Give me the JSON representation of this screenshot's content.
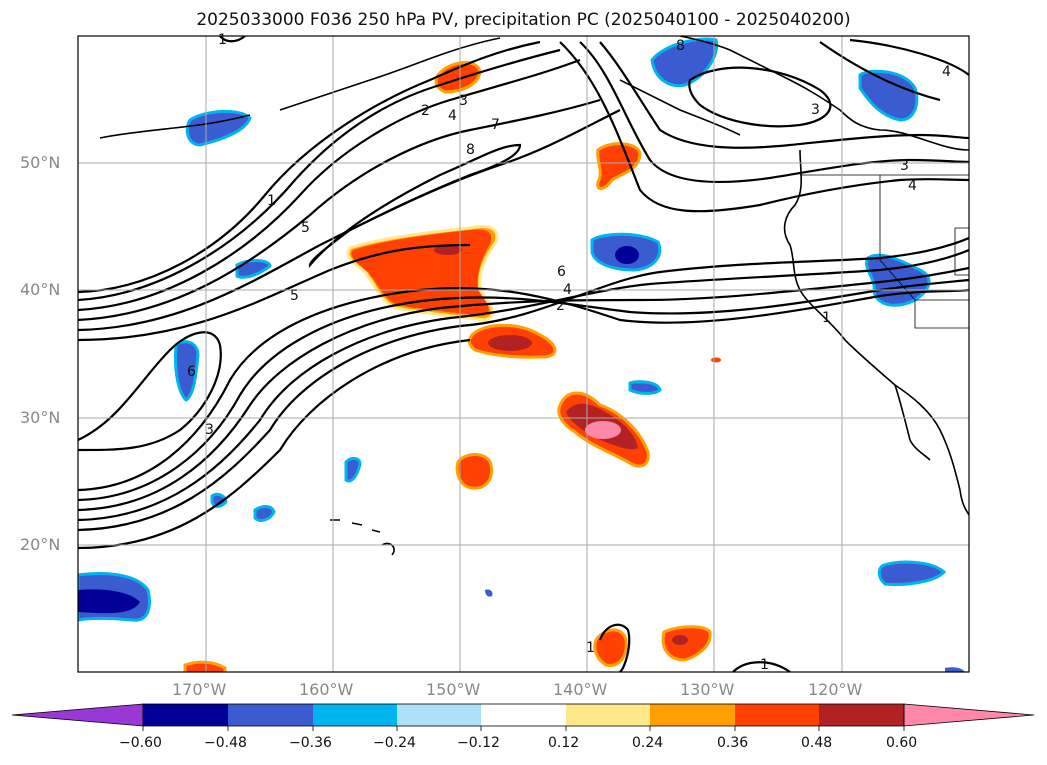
{
  "figure": {
    "title": "2025033000 F036 250 hPa PV, precipitation PC (2025040100 - 2025040200)",
    "lat_labels": [
      "50°N",
      "40°N",
      "30°N",
      "20°N"
    ],
    "lon_labels": [
      "170°W",
      "160°W",
      "150°W",
      "140°W",
      "130°W",
      "120°W"
    ],
    "contour_labels": [
      "1",
      "1",
      "1",
      "2",
      "2",
      "3",
      "3",
      "3",
      "4",
      "4",
      "4",
      "5",
      "5",
      "6",
      "6",
      "7",
      "8",
      "8",
      "3",
      "4",
      "1",
      "1"
    ],
    "colorbar": {
      "tick_labels": [
        "−0.60",
        "−0.48",
        "−0.36",
        "−0.24",
        "−0.12",
        "0.12",
        "0.24",
        "0.36",
        "0.48",
        "0.60"
      ],
      "colors": [
        "#9a38d6",
        "#000096",
        "#3a5cd0",
        "#00b4f0",
        "#ade1fa",
        "#ffffff",
        "#ffe88a",
        "#ffa000",
        "#ff4000",
        "#b22222",
        "#ff88aa"
      ]
    },
    "fill_colors": {
      "neg_light": "#ade1fa",
      "neg_mid": "#00b4f0",
      "neg_med": "#3a5cd0",
      "neg_dark": "#000096",
      "pos_light": "#ffe88a",
      "pos_mid": "#ffa000",
      "pos_med": "#ff4000",
      "pos_dark": "#b22222",
      "pos_max": "#ff88aa"
    }
  }
}
